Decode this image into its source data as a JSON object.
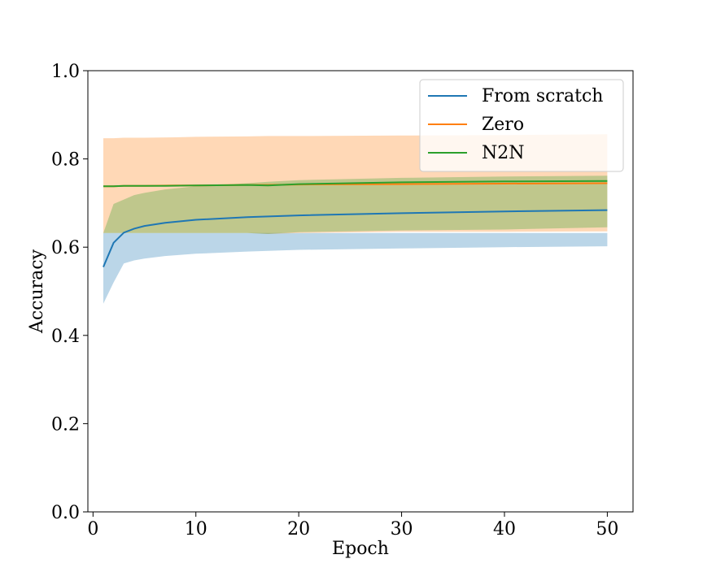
{
  "chart_data": {
    "type": "line",
    "title": "",
    "xlabel": "Epoch",
    "ylabel": "Accuracy",
    "xlim": [
      -0.5,
      52.5
    ],
    "ylim": [
      0.0,
      1.0
    ],
    "xticks": [
      0,
      10,
      20,
      30,
      40,
      50
    ],
    "xtick_labels": [
      "0",
      "10",
      "20",
      "30",
      "40",
      "50"
    ],
    "yticks": [
      0.0,
      0.2,
      0.4,
      0.6,
      0.8,
      1.0
    ],
    "ytick_labels": [
      "0.0",
      "0.2",
      "0.4",
      "0.6",
      "0.8",
      "1.0"
    ],
    "grid": false,
    "legend_position": "top-right",
    "series": [
      {
        "name": "From scratch",
        "color": "#1f77b4",
        "band_color": "#1f77b4",
        "x": [
          1,
          2,
          3,
          4,
          5,
          7,
          10,
          15,
          20,
          30,
          40,
          50
        ],
        "mean": [
          0.555,
          0.61,
          0.633,
          0.642,
          0.648,
          0.655,
          0.662,
          0.668,
          0.672,
          0.677,
          0.681,
          0.684
        ],
        "lower": [
          0.472,
          0.52,
          0.563,
          0.57,
          0.574,
          0.58,
          0.585,
          0.59,
          0.594,
          0.597,
          0.6,
          0.602
        ],
        "upper": [
          0.632,
          0.632,
          0.632,
          0.632,
          0.632,
          0.632,
          0.632,
          0.632,
          0.632,
          0.632,
          0.632,
          0.632
        ]
      },
      {
        "name": "Zero",
        "color": "#ff7f0e",
        "band_color": "#ff7f0e",
        "x": [
          1,
          2,
          3,
          5,
          8,
          10,
          15,
          17,
          20,
          30,
          40,
          50
        ],
        "mean": [
          0.738,
          0.738,
          0.739,
          0.739,
          0.74,
          0.74,
          0.741,
          0.741,
          0.742,
          0.743,
          0.744,
          0.745
        ],
        "lower": [
          0.632,
          0.632,
          0.632,
          0.632,
          0.632,
          0.632,
          0.632,
          0.63,
          0.632,
          0.635,
          0.635,
          0.636
        ],
        "upper": [
          0.847,
          0.847,
          0.848,
          0.848,
          0.849,
          0.85,
          0.851,
          0.852,
          0.852,
          0.853,
          0.854,
          0.856
        ]
      },
      {
        "name": "N2N",
        "color": "#2ca02c",
        "band_color": "#2ca02c",
        "x": [
          1,
          2,
          3,
          4,
          5,
          7,
          10,
          15,
          17,
          20,
          30,
          40,
          50
        ],
        "mean": [
          0.738,
          0.738,
          0.739,
          0.739,
          0.739,
          0.739,
          0.74,
          0.741,
          0.74,
          0.743,
          0.747,
          0.749,
          0.75
        ],
        "lower": [
          0.632,
          0.632,
          0.632,
          0.632,
          0.632,
          0.632,
          0.632,
          0.632,
          0.63,
          0.634,
          0.638,
          0.64,
          0.645
        ],
        "upper": [
          0.632,
          0.698,
          0.708,
          0.718,
          0.723,
          0.731,
          0.738,
          0.745,
          0.748,
          0.752,
          0.757,
          0.76,
          0.762
        ]
      }
    ]
  }
}
